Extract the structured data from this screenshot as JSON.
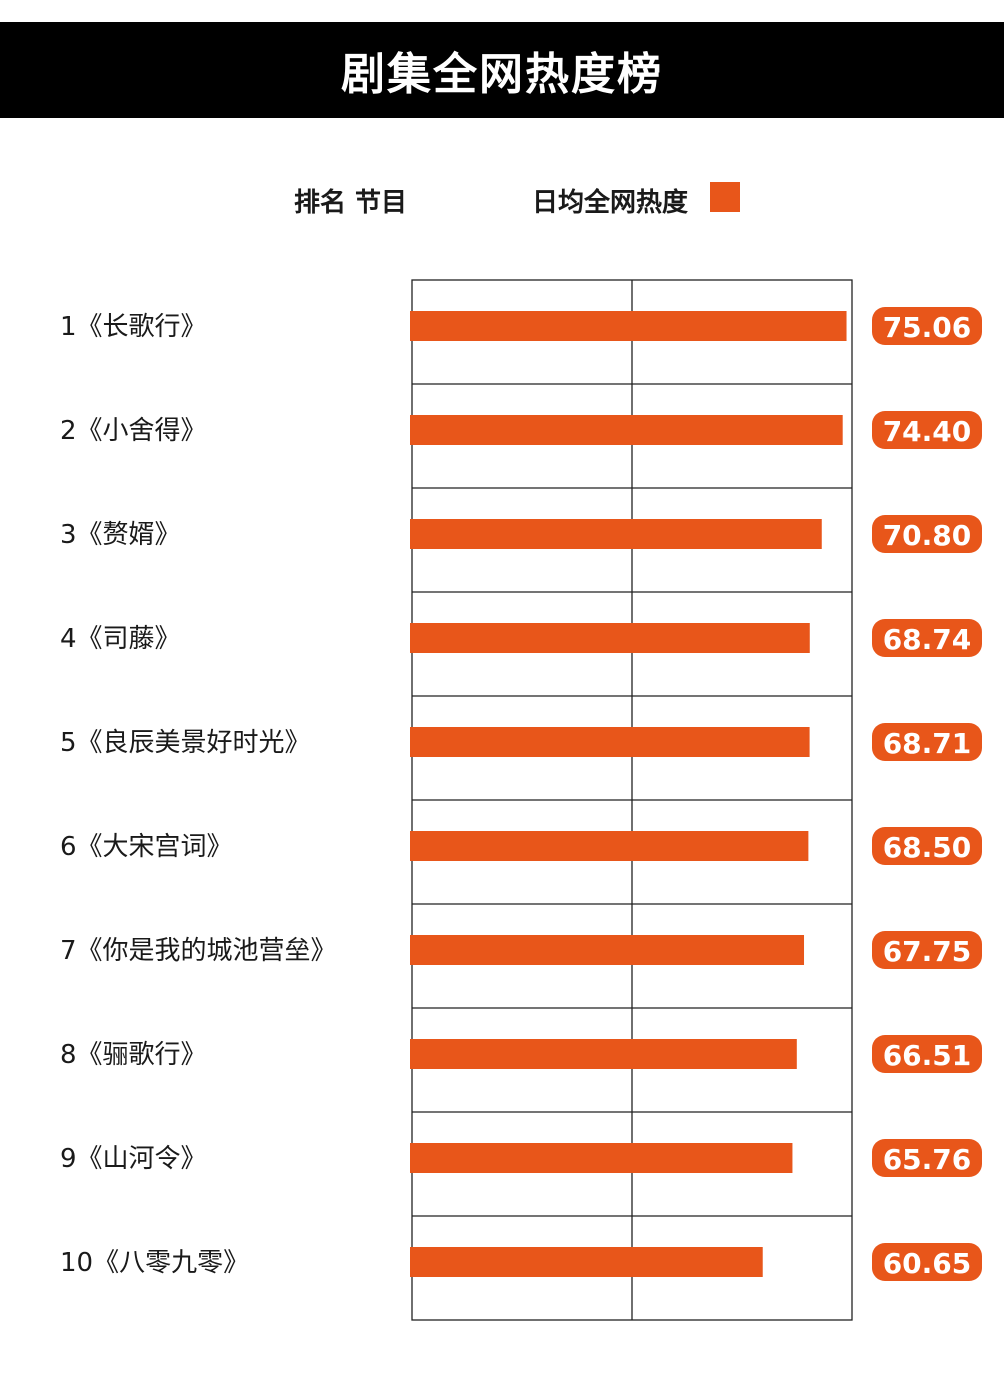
{
  "title": "剧集全网热度榜",
  "header": {
    "rank_program_label": "排名 节目",
    "legend_label": "日均全网热度"
  },
  "colors": {
    "bar": "#E8561A",
    "header_bg": "#000000",
    "grid": "#222222",
    "value_text": "#ffffff"
  },
  "chart_data": {
    "type": "bar",
    "orientation": "horizontal",
    "title": "剧集全网热度榜",
    "series": [
      {
        "name": "日均全网热度",
        "values": [
          75.06,
          74.4,
          70.8,
          68.74,
          68.71,
          68.5,
          67.75,
          66.51,
          65.76,
          60.65
        ]
      }
    ],
    "categories": [
      "1《长歌行》",
      "2《小舍得》",
      "3《赘婿》",
      "4《司藤》",
      "5《良辰美景好时光》",
      "6《大宋宫词》",
      "7《你是我的城池营垒》",
      "8《骊歌行》",
      "9《山河令》",
      "10《八零九零》"
    ],
    "value_labels": [
      "75.06",
      "74.40",
      "70.80",
      "68.74",
      "68.71",
      "68.50",
      "67.75",
      "66.51",
      "65.76",
      "60.65"
    ],
    "xlim": [
      0,
      76
    ],
    "grid": true,
    "legend": "top"
  }
}
